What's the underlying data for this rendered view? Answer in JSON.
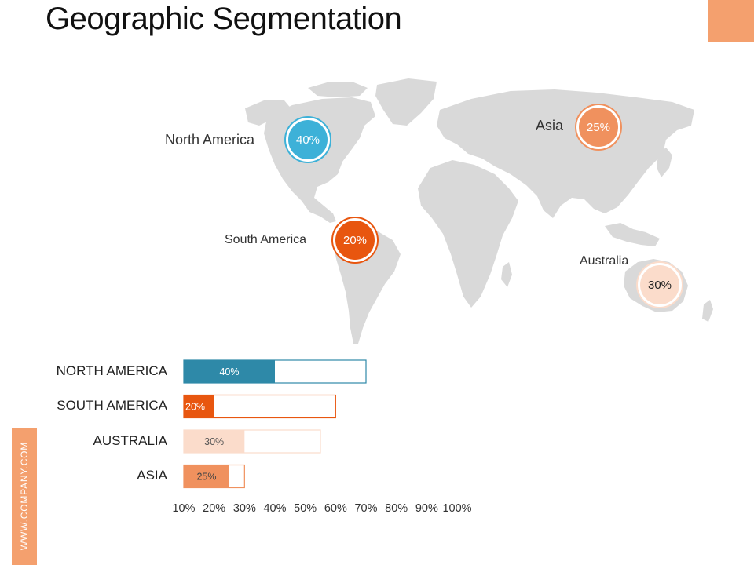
{
  "title": "Geographic Segmentation",
  "side_text": "WWW.COMPANY.COM",
  "colors": {
    "accent": "#f4a06e",
    "north_america": "#2e89a8",
    "north_america_bubble": "#3db1d8",
    "south_america": "#e8560f",
    "australia": "#fbdccb",
    "asia": "#f0915e",
    "map_land": "#d9d9d9"
  },
  "map_regions": [
    {
      "name": "North America",
      "value": "40%"
    },
    {
      "name": "South America",
      "value": "20%"
    },
    {
      "name": "Asia",
      "value": "25%"
    },
    {
      "name": "Australia",
      "value": "30%"
    }
  ],
  "chart_data": {
    "type": "bar",
    "orientation": "horizontal",
    "categories": [
      "NORTH AMERICA",
      "SOUTH AMERICA",
      "AUSTRALIA",
      "ASIA"
    ],
    "values": [
      40,
      20,
      30,
      25
    ],
    "outline_values": [
      70,
      60,
      55,
      30
    ],
    "value_labels": [
      "40%",
      "20%",
      "30%",
      "25%"
    ],
    "x_ticks": [
      "10%",
      "20%",
      "30%",
      "40%",
      "50%",
      "60%",
      "70%",
      "80%",
      "90%",
      "100%"
    ],
    "xlim": [
      10,
      100
    ],
    "grid": false,
    "legend": "none"
  }
}
